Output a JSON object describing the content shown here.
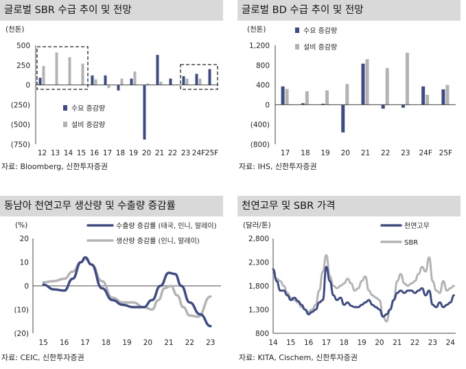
{
  "colors": {
    "navy": "#3c4a86",
    "gray": "#b3b3b3"
  },
  "chart_data": [
    {
      "type": "bar",
      "title": "글로벌 SBR 수급 추이 및 전망",
      "unit": "(천톤)",
      "source": "자료: Bloomberg, 신한투자증권",
      "categories": [
        "12",
        "13",
        "14",
        "15",
        "16",
        "17",
        "18",
        "19",
        "20",
        "21",
        "22",
        "23",
        "24F",
        "25F"
      ],
      "ylim": [
        -750,
        500
      ],
      "yticks": [
        -750,
        -500,
        -250,
        0,
        250,
        500
      ],
      "ytick_labels": [
        "(750)",
        "(500)",
        "(250)",
        "0",
        "250",
        "500"
      ],
      "series": [
        {
          "name": "수요 증감량",
          "values": [
            90,
            0,
            0,
            0,
            120,
            120,
            -70,
            80,
            -690,
            380,
            80,
            110,
            140,
            200
          ]
        },
        {
          "name": "설비 증감량",
          "values": [
            240,
            410,
            350,
            270,
            70,
            -40,
            80,
            170,
            20,
            40,
            0,
            80,
            80,
            0
          ]
        }
      ]
    },
    {
      "type": "bar",
      "title": "글로벌 BD 수급 추이 및 전망",
      "unit": "(천톤)",
      "source": "자료: IHS, 신한투자증권",
      "categories": [
        "17",
        "18",
        "19",
        "20",
        "21",
        "22",
        "23",
        "24F",
        "25F"
      ],
      "ylim": [
        -800,
        1200
      ],
      "yticks": [
        -800,
        -400,
        0,
        400,
        800,
        1200
      ],
      "ytick_labels": [
        "(800)",
        "(400)",
        "0",
        "400",
        "800",
        "1,200"
      ],
      "series": [
        {
          "name": "수요 증감량",
          "values": [
            370,
            30,
            20,
            -560,
            830,
            -80,
            -60,
            370,
            310
          ]
        },
        {
          "name": "설비 증감량",
          "values": [
            320,
            270,
            290,
            420,
            920,
            740,
            1050,
            200,
            400
          ]
        }
      ]
    },
    {
      "type": "line",
      "title": "동남아 천연고무 생산량 및 수출량 증감률",
      "unit": "(%)",
      "source": "자료: CEIC, 신한투자증권",
      "x_labels": [
        "15",
        "16",
        "17",
        "18",
        "19",
        "20",
        "21",
        "22",
        "23"
      ],
      "ylim": [
        -20,
        20
      ],
      "yticks": [
        -20,
        -10,
        0,
        10,
        20
      ],
      "ytick_labels": [
        "(20)",
        "(10)",
        "0",
        "10",
        "20"
      ],
      "series": [
        {
          "name": "수출량 증감률 (태국, 인니, 말레이)",
          "x": [
            15,
            15.5,
            16,
            16.4,
            16.8,
            17,
            17.3,
            17.8,
            18.3,
            18.8,
            19.3,
            19.8,
            20.2,
            20.6,
            21,
            21.3,
            21.6,
            22,
            22.5,
            23
          ],
          "values": [
            0.5,
            -1.5,
            -2,
            3,
            10,
            12,
            9,
            -1,
            -6,
            -8,
            -9,
            -9,
            -6,
            0,
            5.5,
            5,
            0,
            -7,
            -12,
            -17
          ]
        },
        {
          "name": "생산량 증감률 (인니, 말레이)",
          "x": [
            15,
            15.5,
            16,
            16.4,
            16.8,
            17,
            17.3,
            17.8,
            18.3,
            18.8,
            19.3,
            19.8,
            20.2,
            20.5,
            20.8,
            21.1,
            21.4,
            21.7,
            22,
            22.4,
            23
          ],
          "values": [
            1.5,
            2,
            3,
            6,
            10,
            11.5,
            9,
            2,
            -5,
            -7,
            -7,
            -9,
            -10,
            -6,
            -1,
            0,
            -4,
            -9,
            -12.5,
            -13,
            -4.5
          ]
        }
      ]
    },
    {
      "type": "line",
      "title": "천연고무 및 SBR 가격",
      "unit": "(달러/톤)",
      "source": "자료: KITA, Cischem, 신한투자증권",
      "x_labels": [
        "14",
        "15",
        "16",
        "17",
        "18",
        "19",
        "20",
        "21",
        "22",
        "23",
        "24"
      ],
      "ylim": [
        800,
        2800
      ],
      "yticks": [
        800,
        1300,
        1800,
        2300,
        2800
      ],
      "ytick_labels": [
        "800",
        "1,300",
        "1,800",
        "2,300",
        "2,800"
      ],
      "series": [
        {
          "name": "천연고무",
          "x": [
            14,
            14.2,
            14.4,
            14.6,
            14.8,
            15,
            15.2,
            15.4,
            15.6,
            15.8,
            16,
            16.2,
            16.4,
            16.6,
            16.8,
            17,
            17.2,
            17.4,
            17.6,
            17.8,
            18,
            18.2,
            18.4,
            18.6,
            18.8,
            19,
            19.2,
            19.4,
            19.6,
            19.8,
            20,
            20.2,
            20.4,
            20.6,
            20.8,
            21,
            21.2,
            21.4,
            21.6,
            21.8,
            22,
            22.2,
            22.4,
            22.6,
            22.8,
            23,
            23.2,
            23.4,
            23.6,
            23.8,
            24,
            24.2
          ],
          "values": [
            2150,
            1900,
            1700,
            1700,
            1600,
            1500,
            1550,
            1480,
            1400,
            1300,
            1200,
            1250,
            1300,
            1450,
            1500,
            2200,
            1900,
            1600,
            1500,
            1550,
            1400,
            1450,
            1380,
            1350,
            1350,
            1400,
            1450,
            1500,
            1400,
            1350,
            1300,
            1150,
            1200,
            1300,
            1500,
            1650,
            1700,
            1650,
            1700,
            1700,
            1650,
            1700,
            1750,
            1600,
            1700,
            1400,
            1350,
            1450,
            1350,
            1400,
            1450,
            1600
          ]
        },
        {
          "name": "SBR",
          "x": [
            14,
            14.2,
            14.4,
            14.6,
            14.8,
            15,
            15.2,
            15.4,
            15.6,
            15.8,
            16,
            16.2,
            16.4,
            16.6,
            16.8,
            17,
            17.2,
            17.4,
            17.6,
            17.8,
            18,
            18.2,
            18.4,
            18.6,
            18.8,
            19,
            19.2,
            19.4,
            19.6,
            19.8,
            20,
            20.2,
            20.4,
            20.6,
            20.8,
            21,
            21.2,
            21.4,
            21.6,
            21.8,
            22,
            22.2,
            22.4,
            22.6,
            22.8,
            23,
            23.2,
            23.4,
            23.6,
            23.8,
            24,
            24.2
          ],
          "values": [
            2000,
            1950,
            1900,
            1800,
            1650,
            1550,
            1500,
            1450,
            1350,
            1300,
            1250,
            1300,
            1400,
            1700,
            2100,
            2450,
            2000,
            1800,
            1750,
            1800,
            1850,
            1950,
            1850,
            1700,
            1750,
            1900,
            2000,
            1700,
            1600,
            1550,
            1500,
            1150,
            1050,
            1300,
            1500,
            1900,
            2050,
            1850,
            1800,
            1850,
            1900,
            2050,
            2200,
            2100,
            2400,
            1900,
            1700,
            1650,
            1900,
            1700,
            1750,
            1800
          ]
        }
      ]
    }
  ]
}
